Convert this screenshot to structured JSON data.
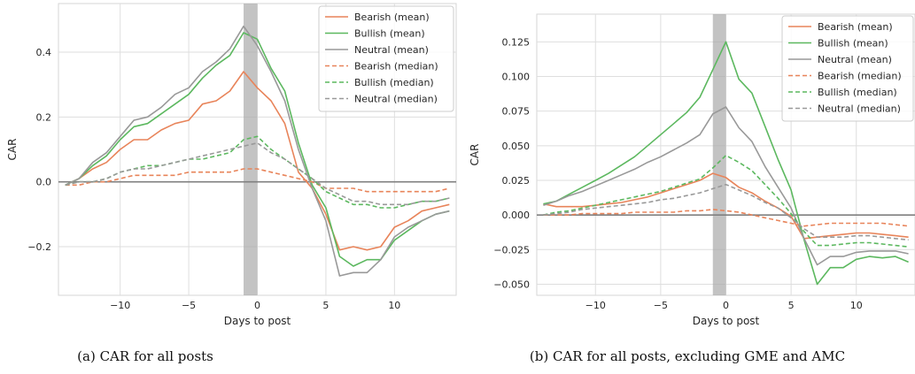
{
  "figure": {
    "captions": [
      "(a) CAR for all posts",
      "(b) CAR for all posts, excluding GME and AMC"
    ]
  },
  "colors": {
    "bearish": "#e8845a",
    "bullish": "#5cb85f",
    "neutral": "#999999",
    "zero_line": "#808080",
    "shade": "#a9a9a9",
    "grid": "#dedede"
  },
  "chart_data": [
    {
      "type": "line",
      "xlabel": "Days to post",
      "ylabel": "CAR",
      "xlim": [
        -14.5,
        14.5
      ],
      "ylim": [
        -0.35,
        0.55
      ],
      "xticks": [
        -10,
        -5,
        0,
        5,
        10
      ],
      "xtick_labels": [
        "−10",
        "−5",
        "0",
        "5",
        "10"
      ],
      "yticks": [
        -0.2,
        0.0,
        0.2,
        0.4
      ],
      "ytick_labels": [
        "−0.2",
        "0.0",
        "0.2",
        "0.4"
      ],
      "grid": true,
      "legend_position": "top-right",
      "shaded_x": [
        -1,
        0
      ],
      "hline": 0,
      "x": [
        -14,
        -13,
        -12,
        -11,
        -10,
        -9,
        -8,
        -7,
        -6,
        -5,
        -4,
        -3,
        -2,
        -1,
        0,
        1,
        2,
        3,
        4,
        5,
        6,
        7,
        8,
        9,
        10,
        11,
        12,
        13,
        14
      ],
      "series": [
        {
          "name": "Bearish (mean)",
          "color": "bearish",
          "style": "solid",
          "values": [
            -0.01,
            0.01,
            0.04,
            0.06,
            0.1,
            0.13,
            0.13,
            0.16,
            0.18,
            0.19,
            0.24,
            0.25,
            0.28,
            0.34,
            0.29,
            0.25,
            0.18,
            0.03,
            -0.02,
            -0.1,
            -0.21,
            -0.2,
            -0.21,
            -0.2,
            -0.14,
            -0.12,
            -0.09,
            -0.08,
            -0.07
          ]
        },
        {
          "name": "Bullish (mean)",
          "color": "bullish",
          "style": "solid",
          "values": [
            -0.01,
            0.01,
            0.05,
            0.08,
            0.13,
            0.17,
            0.18,
            0.21,
            0.24,
            0.27,
            0.32,
            0.36,
            0.39,
            0.46,
            0.44,
            0.35,
            0.28,
            0.12,
            -0.01,
            -0.08,
            -0.23,
            -0.26,
            -0.24,
            -0.24,
            -0.18,
            -0.15,
            -0.12,
            -0.1,
            -0.09
          ]
        },
        {
          "name": "Neutral (mean)",
          "color": "neutral",
          "style": "solid",
          "values": [
            -0.01,
            0.01,
            0.06,
            0.09,
            0.14,
            0.19,
            0.2,
            0.23,
            0.27,
            0.29,
            0.34,
            0.37,
            0.41,
            0.48,
            0.42,
            0.34,
            0.25,
            0.1,
            -0.02,
            -0.12,
            -0.29,
            -0.28,
            -0.28,
            -0.24,
            -0.17,
            -0.14,
            -0.12,
            -0.1,
            -0.09
          ]
        },
        {
          "name": "Bearish (median)",
          "color": "bearish",
          "style": "dashed",
          "values": [
            -0.01,
            -0.01,
            0.0,
            0.0,
            0.01,
            0.02,
            0.02,
            0.02,
            0.02,
            0.03,
            0.03,
            0.03,
            0.03,
            0.04,
            0.04,
            0.03,
            0.02,
            0.01,
            0.0,
            -0.02,
            -0.02,
            -0.02,
            -0.03,
            -0.03,
            -0.03,
            -0.03,
            -0.03,
            -0.03,
            -0.02
          ]
        },
        {
          "name": "Bullish (median)",
          "color": "bullish",
          "style": "dashed",
          "values": [
            -0.01,
            0.0,
            0.0,
            0.01,
            0.03,
            0.04,
            0.05,
            0.05,
            0.06,
            0.07,
            0.07,
            0.08,
            0.09,
            0.13,
            0.14,
            0.1,
            0.07,
            0.04,
            0.01,
            -0.03,
            -0.05,
            -0.07,
            -0.07,
            -0.08,
            -0.08,
            -0.07,
            -0.06,
            -0.06,
            -0.05
          ]
        },
        {
          "name": "Neutral (median)",
          "color": "neutral",
          "style": "dashed",
          "values": [
            -0.01,
            0.0,
            0.0,
            0.01,
            0.03,
            0.04,
            0.04,
            0.05,
            0.06,
            0.07,
            0.08,
            0.09,
            0.1,
            0.11,
            0.12,
            0.09,
            0.07,
            0.04,
            0.01,
            -0.02,
            -0.04,
            -0.06,
            -0.06,
            -0.07,
            -0.07,
            -0.07,
            -0.06,
            -0.06,
            -0.05
          ]
        }
      ]
    },
    {
      "type": "line",
      "xlabel": "Days to post",
      "ylabel": "CAR",
      "xlim": [
        -14.5,
        14.5
      ],
      "ylim": [
        -0.058,
        0.145
      ],
      "xticks": [
        -10,
        -5,
        0,
        5,
        10
      ],
      "xtick_labels": [
        "−10",
        "−5",
        "0",
        "5",
        "10"
      ],
      "yticks": [
        -0.05,
        -0.025,
        0.0,
        0.025,
        0.05,
        0.075,
        0.1,
        0.125
      ],
      "ytick_labels": [
        "−0.050",
        "−0.025",
        "0.000",
        "0.025",
        "0.050",
        "0.075",
        "0.100",
        "0.125"
      ],
      "grid": true,
      "legend_position": "top-right",
      "shaded_x": [
        -1,
        0
      ],
      "hline": 0,
      "x": [
        -14,
        -13,
        -12,
        -11,
        -10,
        -9,
        -8,
        -7,
        -6,
        -5,
        -4,
        -3,
        -2,
        -1,
        0,
        1,
        2,
        3,
        4,
        5,
        6,
        7,
        8,
        9,
        10,
        11,
        12,
        13,
        14
      ],
      "series": [
        {
          "name": "Bearish (mean)",
          "color": "bearish",
          "style": "solid",
          "values": [
            0.008,
            0.006,
            0.006,
            0.006,
            0.007,
            0.008,
            0.009,
            0.011,
            0.013,
            0.016,
            0.019,
            0.022,
            0.025,
            0.03,
            0.027,
            0.02,
            0.016,
            0.01,
            0.005,
            -0.001,
            -0.017,
            -0.016,
            -0.015,
            -0.014,
            -0.013,
            -0.013,
            -0.014,
            -0.015,
            -0.016
          ]
        },
        {
          "name": "Bullish (mean)",
          "color": "bullish",
          "style": "solid",
          "values": [
            0.008,
            0.01,
            0.015,
            0.02,
            0.025,
            0.03,
            0.036,
            0.042,
            0.05,
            0.058,
            0.066,
            0.074,
            0.085,
            0.105,
            0.125,
            0.098,
            0.088,
            0.064,
            0.04,
            0.018,
            -0.018,
            -0.05,
            -0.038,
            -0.038,
            -0.032,
            -0.03,
            -0.031,
            -0.03,
            -0.034
          ]
        },
        {
          "name": "Neutral (mean)",
          "color": "neutral",
          "style": "solid",
          "values": [
            0.007,
            0.01,
            0.014,
            0.017,
            0.021,
            0.025,
            0.029,
            0.033,
            0.038,
            0.042,
            0.047,
            0.052,
            0.058,
            0.073,
            0.078,
            0.063,
            0.053,
            0.035,
            0.02,
            0.005,
            -0.017,
            -0.036,
            -0.03,
            -0.03,
            -0.027,
            -0.026,
            -0.026,
            -0.026,
            -0.028
          ]
        },
        {
          "name": "Bearish (median)",
          "color": "bearish",
          "style": "dashed",
          "values": [
            0.0,
            0.0,
            0.0,
            0.001,
            0.001,
            0.001,
            0.001,
            0.002,
            0.002,
            0.002,
            0.002,
            0.003,
            0.003,
            0.004,
            0.003,
            0.002,
            0.0,
            -0.002,
            -0.004,
            -0.006,
            -0.008,
            -0.007,
            -0.006,
            -0.006,
            -0.006,
            -0.006,
            -0.006,
            -0.007,
            -0.008
          ]
        },
        {
          "name": "Bullish (median)",
          "color": "bullish",
          "style": "dashed",
          "values": [
            0.0,
            0.002,
            0.003,
            0.005,
            0.007,
            0.009,
            0.011,
            0.013,
            0.015,
            0.017,
            0.02,
            0.023,
            0.026,
            0.034,
            0.043,
            0.038,
            0.032,
            0.022,
            0.012,
            0.001,
            -0.012,
            -0.022,
            -0.022,
            -0.021,
            -0.02,
            -0.02,
            -0.021,
            -0.022,
            -0.023
          ]
        },
        {
          "name": "Neutral (median)",
          "color": "neutral",
          "style": "dashed",
          "values": [
            0.0,
            0.001,
            0.002,
            0.004,
            0.005,
            0.006,
            0.007,
            0.008,
            0.009,
            0.011,
            0.012,
            0.014,
            0.016,
            0.019,
            0.022,
            0.018,
            0.014,
            0.009,
            0.005,
            -0.002,
            -0.01,
            -0.016,
            -0.016,
            -0.016,
            -0.015,
            -0.015,
            -0.016,
            -0.017,
            -0.018
          ]
        }
      ]
    }
  ]
}
